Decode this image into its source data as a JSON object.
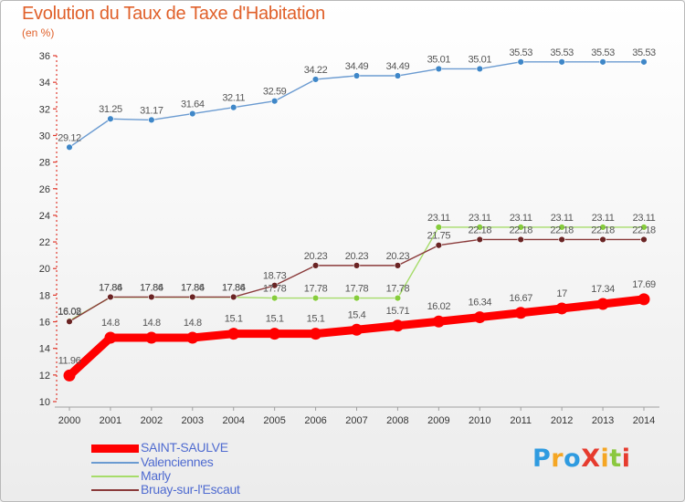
{
  "title": "Evolution du Taux de Taxe d'Habitation",
  "subtitle": "(en %)",
  "logo": {
    "text": "ProXiti",
    "letters": [
      {
        "ch": "P",
        "color": "#2f9be0"
      },
      {
        "ch": "r",
        "color": "#f5a623"
      },
      {
        "ch": "o",
        "color": "#2f9be0"
      },
      {
        "ch": "X",
        "color": "#e63b2e"
      },
      {
        "ch": "i",
        "color": "#f5a623"
      },
      {
        "ch": "t",
        "color": "#8bc83f"
      },
      {
        "ch": "i",
        "color": "#e63b2e"
      }
    ]
  },
  "chart_data": {
    "type": "line",
    "title": "Evolution du Taux de Taxe d'Habitation",
    "ylabel": "(en %)",
    "xlabel": "",
    "ylim": [
      10,
      36
    ],
    "yticks": [
      10,
      12,
      14,
      16,
      18,
      20,
      22,
      24,
      26,
      28,
      30,
      32,
      34,
      36
    ],
    "x": [
      "2000",
      "2001",
      "2002",
      "2003",
      "2004",
      "2005",
      "2006",
      "2007",
      "2008",
      "2009",
      "2010",
      "2011",
      "2012",
      "2013",
      "2014"
    ],
    "grid": "none",
    "legend_position": "bottom-left",
    "series": [
      {
        "name": "Valenciennes",
        "color": "#6b9bd1",
        "marker": "#3f87c8",
        "values": [
          29.12,
          31.25,
          31.17,
          31.64,
          32.11,
          32.59,
          34.22,
          34.49,
          34.49,
          35.01,
          35.01,
          35.53,
          35.53,
          35.53,
          35.53
        ],
        "labels": [
          "29.12",
          "31.25",
          "31.17",
          "31.64",
          "32.11",
          "32.59",
          "34.22",
          "34.49",
          "34.49",
          "35.01",
          "35.01",
          "35.53",
          "35.53",
          "35.53",
          "35.53"
        ]
      },
      {
        "name": "Marly",
        "color": "#a6dc6a",
        "marker": "#86cc3c",
        "values": [
          16.08,
          17.84,
          17.84,
          17.84,
          17.84,
          17.78,
          17.78,
          17.78,
          17.78,
          23.11,
          23.11,
          23.11,
          23.11,
          23.11,
          23.11
        ],
        "labels": [
          "16.08",
          "17.84",
          "17.84",
          "17.84",
          "17.84",
          "17.78",
          "17.78",
          "17.78",
          "17.78",
          "23.11",
          "23.11",
          "23.11",
          "23.11",
          "23.11",
          "23.11"
        ]
      },
      {
        "name": "Bruay-sur-l'Escaut",
        "color": "#8a3a3a",
        "marker": "#6a2424",
        "values": [
          16.02,
          17.86,
          17.86,
          17.86,
          17.86,
          18.73,
          20.23,
          20.23,
          20.23,
          21.75,
          22.18,
          22.18,
          22.18,
          22.18,
          22.18
        ],
        "labels": [
          "16.02",
          "17.86",
          "17.86",
          "17.86",
          "17.86",
          "18.73",
          "20.23",
          "20.23",
          "20.23",
          "21.75",
          "22.18",
          "22.18",
          "22.18",
          "22.18",
          "22.18"
        ]
      },
      {
        "name": "SAINT-SAULVE",
        "color": "#ff0000",
        "marker": "#ff0000",
        "values": [
          11.96,
          14.8,
          14.8,
          14.8,
          15.1,
          15.1,
          15.1,
          15.4,
          15.71,
          16.02,
          16.34,
          16.67,
          17,
          17.34,
          17.69
        ],
        "labels": [
          "11.96",
          "14.8",
          "14.8",
          "14.8",
          "15.1",
          "15.1",
          "15.1",
          "15.4",
          "15.71",
          "16.02",
          "16.34",
          "16.67",
          "17",
          "17.34",
          "17.69"
        ]
      }
    ]
  },
  "legend": [
    {
      "name": "SAINT-SAULVE",
      "color": "#ff0000"
    },
    {
      "name": "Valenciennes",
      "color": "#6b9bd1"
    },
    {
      "name": "Marly",
      "color": "#a6dc6a"
    },
    {
      "name": "Bruay-sur-l'Escaut",
      "color": "#8a3a3a"
    }
  ]
}
